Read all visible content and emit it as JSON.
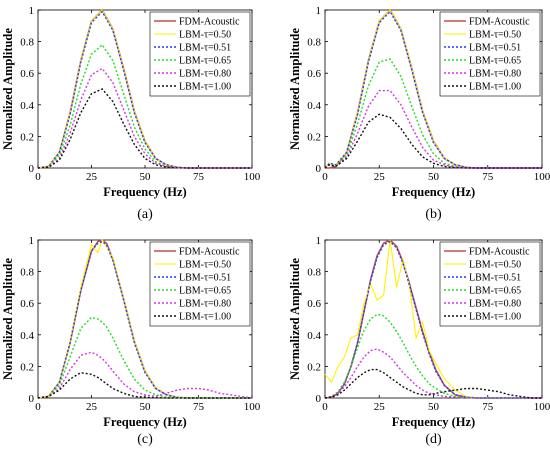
{
  "colors": {
    "fdm": "#C0504D",
    "tau050": "#FFF200",
    "tau051": "#1F3FFF",
    "tau065": "#22DD22",
    "tau080": "#D633E6",
    "tau100": "#111111"
  },
  "chart_data": [
    {
      "type": "line",
      "panel_label": "(a)",
      "xlabel": "Frequency (Hz)",
      "ylabel": "Normalized Amplitude",
      "xlim": [
        0,
        100
      ],
      "ylim": [
        0,
        1
      ],
      "xticks": [
        "0",
        "25",
        "50",
        "75",
        "100"
      ],
      "yticks": [
        "0",
        "0.2",
        "0.4",
        "0.6",
        "0.8",
        "1"
      ],
      "legend_position": "top-right",
      "x": [
        0,
        5,
        10,
        15,
        20,
        25,
        30,
        35,
        40,
        45,
        50,
        55,
        60,
        65,
        70,
        75,
        80,
        85,
        90,
        95,
        100
      ],
      "series": [
        {
          "name": "FDM-Acoustic",
          "values": [
            0,
            0.01,
            0.1,
            0.35,
            0.68,
            0.93,
            1.0,
            0.88,
            0.63,
            0.36,
            0.17,
            0.06,
            0.02,
            0.004,
            0,
            0,
            0,
            0,
            0,
            0,
            0
          ]
        },
        {
          "name": "LBM-τ=0.50",
          "values": [
            0,
            0.01,
            0.1,
            0.35,
            0.68,
            0.93,
            1.0,
            0.88,
            0.63,
            0.36,
            0.17,
            0.06,
            0.02,
            0.004,
            0,
            0,
            0,
            0,
            0,
            0,
            0
          ]
        },
        {
          "name": "LBM-τ=0.51",
          "values": [
            0,
            0.01,
            0.1,
            0.34,
            0.67,
            0.92,
            0.99,
            0.87,
            0.62,
            0.35,
            0.16,
            0.06,
            0.02,
            0.004,
            0,
            0,
            0,
            0,
            0,
            0,
            0
          ]
        },
        {
          "name": "LBM-τ=0.65",
          "values": [
            0,
            0.008,
            0.08,
            0.27,
            0.53,
            0.72,
            0.78,
            0.68,
            0.47,
            0.26,
            0.12,
            0.04,
            0.01,
            0.003,
            0,
            0,
            0,
            0,
            0,
            0,
            0
          ]
        },
        {
          "name": "LBM-τ=0.80",
          "values": [
            0,
            0.006,
            0.06,
            0.22,
            0.43,
            0.59,
            0.63,
            0.54,
            0.37,
            0.2,
            0.09,
            0.03,
            0.01,
            0.002,
            0,
            0,
            0,
            0,
            0,
            0,
            0
          ]
        },
        {
          "name": "LBM-τ=1.00",
          "values": [
            0,
            0.005,
            0.05,
            0.18,
            0.35,
            0.47,
            0.5,
            0.42,
            0.28,
            0.15,
            0.06,
            0.02,
            0.006,
            0.001,
            0,
            0,
            0,
            0,
            0,
            0,
            0
          ]
        }
      ]
    },
    {
      "type": "line",
      "panel_label": "(b)",
      "xlabel": "Frequency (Hz)",
      "ylabel": "Normalized Amplitude",
      "xlim": [
        0,
        100
      ],
      "ylim": [
        0,
        1
      ],
      "xticks": [
        "0",
        "25",
        "50",
        "75",
        "100"
      ],
      "yticks": [
        "0",
        "0.2",
        "0.4",
        "0.6",
        "0.8",
        "1"
      ],
      "legend_position": "top-right",
      "x": [
        0,
        2,
        5,
        10,
        15,
        20,
        25,
        30,
        35,
        40,
        45,
        50,
        55,
        60,
        65,
        70,
        75,
        80,
        85,
        90,
        95,
        100
      ],
      "series": [
        {
          "name": "FDM-Acoustic",
          "values": [
            0,
            0,
            0.01,
            0.1,
            0.35,
            0.68,
            0.93,
            1.0,
            0.88,
            0.63,
            0.36,
            0.17,
            0.06,
            0.02,
            0.004,
            0,
            0,
            0,
            0,
            0,
            0,
            0
          ]
        },
        {
          "name": "LBM-τ=0.50",
          "values": [
            0,
            0.03,
            0.02,
            0.1,
            0.35,
            0.68,
            0.93,
            1.0,
            0.88,
            0.63,
            0.36,
            0.17,
            0.06,
            0.02,
            0.004,
            0,
            0,
            0,
            0,
            0,
            0,
            0
          ]
        },
        {
          "name": "LBM-τ=0.51",
          "values": [
            0,
            0.03,
            0.02,
            0.1,
            0.34,
            0.67,
            0.92,
            0.99,
            0.87,
            0.62,
            0.35,
            0.16,
            0.06,
            0.02,
            0.004,
            0,
            0,
            0,
            0,
            0,
            0,
            0
          ]
        },
        {
          "name": "LBM-τ=0.65",
          "values": [
            0,
            0.02,
            0.015,
            0.08,
            0.28,
            0.52,
            0.67,
            0.69,
            0.58,
            0.39,
            0.21,
            0.09,
            0.03,
            0.01,
            0.002,
            0,
            0,
            0,
            0,
            0,
            0,
            0
          ]
        },
        {
          "name": "LBM-τ=0.80",
          "values": [
            0,
            0.02,
            0.012,
            0.07,
            0.22,
            0.39,
            0.49,
            0.49,
            0.4,
            0.26,
            0.13,
            0.05,
            0.02,
            0.005,
            0,
            0,
            0,
            0,
            0,
            0,
            0,
            0
          ]
        },
        {
          "name": "LBM-τ=1.00",
          "values": [
            0,
            0.02,
            0.01,
            0.06,
            0.17,
            0.29,
            0.34,
            0.32,
            0.25,
            0.15,
            0.07,
            0.03,
            0.01,
            0.002,
            0,
            0,
            0,
            0,
            0,
            0,
            0,
            0
          ]
        }
      ]
    },
    {
      "type": "line",
      "panel_label": "(c)",
      "xlabel": "Frequency (Hz)",
      "ylabel": "Normalized Amplitude",
      "xlim": [
        0,
        100
      ],
      "ylim": [
        0,
        1
      ],
      "xticks": [
        "0",
        "25",
        "50",
        "75",
        "100"
      ],
      "yticks": [
        "0",
        "0.2",
        "0.4",
        "0.6",
        "0.8",
        "1"
      ],
      "legend_position": "top-right",
      "x": [
        0,
        5,
        10,
        15,
        20,
        25,
        28,
        30,
        32,
        35,
        40,
        45,
        50,
        55,
        60,
        65,
        70,
        75,
        80,
        85,
        90,
        95,
        100
      ],
      "series": [
        {
          "name": "FDM-Acoustic",
          "values": [
            0,
            0.01,
            0.1,
            0.35,
            0.68,
            0.93,
            0.99,
            1.0,
            0.98,
            0.88,
            0.63,
            0.36,
            0.17,
            0.06,
            0.02,
            0.004,
            0,
            0,
            0,
            0,
            0,
            0,
            0
          ]
        },
        {
          "name": "LBM-τ=0.50",
          "values": [
            0,
            0.01,
            0.1,
            0.36,
            0.7,
            0.97,
            0.92,
            1.0,
            0.96,
            0.89,
            0.63,
            0.36,
            0.17,
            0.06,
            0.02,
            0.004,
            0,
            0,
            0,
            0,
            0,
            0,
            0
          ]
        },
        {
          "name": "LBM-τ=0.51",
          "values": [
            0,
            0.01,
            0.1,
            0.35,
            0.68,
            0.93,
            0.98,
            0.99,
            0.97,
            0.87,
            0.62,
            0.35,
            0.16,
            0.06,
            0.02,
            0.004,
            0,
            0,
            0,
            0,
            0,
            0,
            0
          ]
        },
        {
          "name": "LBM-τ=0.65",
          "values": [
            0,
            0.01,
            0.08,
            0.26,
            0.44,
            0.51,
            0.5,
            0.48,
            0.45,
            0.38,
            0.24,
            0.12,
            0.05,
            0.02,
            0.005,
            0.001,
            0,
            0,
            0,
            0,
            0,
            0,
            0
          ]
        },
        {
          "name": "LBM-τ=0.80",
          "values": [
            0,
            0.01,
            0.06,
            0.18,
            0.27,
            0.29,
            0.27,
            0.25,
            0.22,
            0.17,
            0.09,
            0.04,
            0.02,
            0.01,
            0.03,
            0.05,
            0.06,
            0.06,
            0.05,
            0.03,
            0.02,
            0.01,
            0
          ]
        },
        {
          "name": "LBM-τ=1.00",
          "values": [
            0,
            0.01,
            0.05,
            0.12,
            0.16,
            0.15,
            0.13,
            0.11,
            0.09,
            0.06,
            0.03,
            0.01,
            0.005,
            0.002,
            0,
            0,
            0,
            0,
            0,
            0,
            0,
            0,
            0
          ]
        }
      ]
    },
    {
      "type": "line",
      "panel_label": "(d)",
      "xlabel": "Frequency (Hz)",
      "ylabel": "Normalized Amplitude",
      "xlim": [
        0,
        100
      ],
      "ylim": [
        0,
        1
      ],
      "xticks": [
        "0",
        "25",
        "50",
        "75",
        "100"
      ],
      "yticks": [
        "0",
        "0.2",
        "0.4",
        "0.6",
        "0.8",
        "1"
      ],
      "legend_position": "top-right",
      "x": [
        0,
        3,
        6,
        9,
        12,
        15,
        18,
        21,
        24,
        27,
        30,
        33,
        36,
        39,
        42,
        45,
        48,
        51,
        55,
        60,
        65,
        70,
        75,
        80,
        85,
        90,
        95,
        100
      ],
      "series": [
        {
          "name": "FDM-Acoustic",
          "values": [
            0,
            0.005,
            0.03,
            0.09,
            0.2,
            0.35,
            0.55,
            0.75,
            0.9,
            0.98,
            1.0,
            0.96,
            0.86,
            0.72,
            0.57,
            0.42,
            0.29,
            0.18,
            0.08,
            0.02,
            0.005,
            0,
            0,
            0,
            0,
            0,
            0,
            0
          ]
        },
        {
          "name": "LBM-τ=0.50",
          "values": [
            0.15,
            0.1,
            0.2,
            0.26,
            0.38,
            0.4,
            0.6,
            0.72,
            0.62,
            0.65,
            1.0,
            0.7,
            0.88,
            0.7,
            0.38,
            0.48,
            0.3,
            0.22,
            0.12,
            0.05,
            0.01,
            0,
            0,
            0,
            0,
            0,
            0,
            0
          ]
        },
        {
          "name": "LBM-τ=0.51",
          "values": [
            0,
            0.005,
            0.03,
            0.09,
            0.2,
            0.35,
            0.55,
            0.74,
            0.89,
            0.97,
            0.99,
            0.95,
            0.85,
            0.71,
            0.56,
            0.41,
            0.28,
            0.17,
            0.08,
            0.02,
            0.005,
            0,
            0,
            0,
            0,
            0,
            0,
            0
          ]
        },
        {
          "name": "LBM-τ=0.65",
          "values": [
            0,
            0.01,
            0.04,
            0.1,
            0.2,
            0.32,
            0.43,
            0.5,
            0.53,
            0.52,
            0.48,
            0.42,
            0.35,
            0.27,
            0.2,
            0.14,
            0.09,
            0.06,
            0.03,
            0.01,
            0.003,
            0,
            0,
            0,
            0,
            0,
            0,
            0
          ]
        },
        {
          "name": "LBM-τ=0.80",
          "values": [
            0,
            0.01,
            0.03,
            0.07,
            0.13,
            0.2,
            0.26,
            0.3,
            0.31,
            0.29,
            0.26,
            0.21,
            0.16,
            0.12,
            0.08,
            0.05,
            0.03,
            0.02,
            0.01,
            0.005,
            0,
            0,
            0,
            0,
            0,
            0,
            0,
            0
          ]
        },
        {
          "name": "LBM-τ=1.00",
          "values": [
            0,
            0.005,
            0.02,
            0.05,
            0.09,
            0.13,
            0.16,
            0.18,
            0.18,
            0.16,
            0.13,
            0.1,
            0.07,
            0.05,
            0.03,
            0.02,
            0.02,
            0.03,
            0.04,
            0.05,
            0.06,
            0.06,
            0.05,
            0.04,
            0.02,
            0.01,
            0,
            0
          ]
        }
      ]
    }
  ]
}
